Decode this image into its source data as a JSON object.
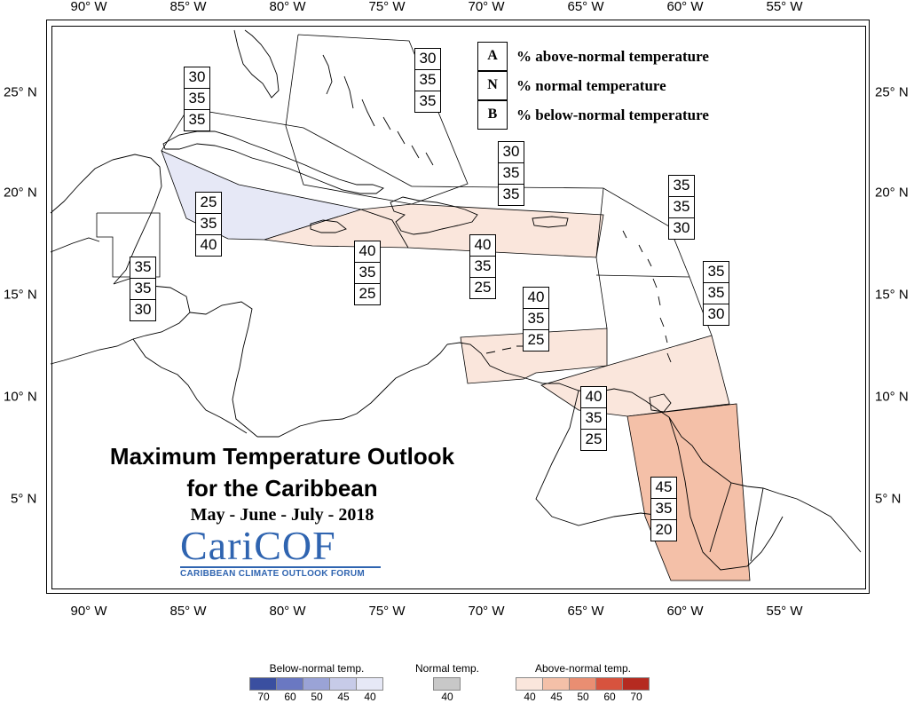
{
  "axes": {
    "longitude_labels": [
      "90° W",
      "85° W",
      "80° W",
      "75° W",
      "70° W",
      "65° W",
      "60° W",
      "55° W"
    ],
    "latitude_labels": [
      "25° N",
      "20° N",
      "15° N",
      "10° N",
      "5° N"
    ]
  },
  "key": [
    {
      "letter": "A",
      "text": "% above-normal temperature"
    },
    {
      "letter": "N",
      "text": "% normal temperature"
    },
    {
      "letter": "B",
      "text": "% below-normal temperature"
    }
  ],
  "title": {
    "line1": "Maximum Temperature Outlook",
    "line2": "for the Caribbean",
    "line3": "May - June - July - 2018"
  },
  "logo": {
    "main": "CariCOF",
    "sub": "CARIBBEAN CLIMATE OUTLOOK FORUM"
  },
  "zones": [
    {
      "name": "bahamas",
      "A": "30",
      "N": "35",
      "B": "35"
    },
    {
      "name": "cuba",
      "A": "30",
      "N": "35",
      "B": "35"
    },
    {
      "name": "cayman-jamaica-west",
      "A": "25",
      "N": "35",
      "B": "40"
    },
    {
      "name": "belize",
      "A": "35",
      "N": "35",
      "B": "30"
    },
    {
      "name": "jamaica-haiti",
      "A": "40",
      "N": "35",
      "B": "25"
    },
    {
      "name": "hispaniola-puerto-rico",
      "A": "40",
      "N": "35",
      "B": "25"
    },
    {
      "name": "turks-caicos",
      "A": "30",
      "N": "35",
      "B": "35"
    },
    {
      "name": "leeward-north",
      "A": "35",
      "N": "35",
      "B": "30"
    },
    {
      "name": "windward",
      "A": "35",
      "N": "35",
      "B": "30"
    },
    {
      "name": "abc-islands",
      "A": "40",
      "N": "35",
      "B": "25"
    },
    {
      "name": "trinidad",
      "A": "40",
      "N": "35",
      "B": "25"
    },
    {
      "name": "guianas",
      "A": "45",
      "N": "35",
      "B": "20"
    }
  ],
  "colorbar": {
    "below": {
      "title": "Below-normal temp.",
      "ticks": [
        "70",
        "60",
        "50",
        "45",
        "40"
      ],
      "colors": [
        "#3a4fa0",
        "#6a78c2",
        "#9aa3d6",
        "#c7cbe8",
        "#e6e8f6"
      ]
    },
    "normal": {
      "title": "Normal temp.",
      "ticks": [
        "40"
      ],
      "colors": [
        "#c8c8c8"
      ]
    },
    "above": {
      "title": "Above-normal temp.",
      "ticks": [
        "40",
        "45",
        "50",
        "60",
        "70"
      ],
      "colors": [
        "#fae6dc",
        "#f4c0a8",
        "#e98e72",
        "#d7533e",
        "#b52a20"
      ]
    }
  },
  "fills": {
    "below40": "#e6e8f6",
    "above40": "#fae6dc",
    "above45": "#f4c0a8"
  }
}
